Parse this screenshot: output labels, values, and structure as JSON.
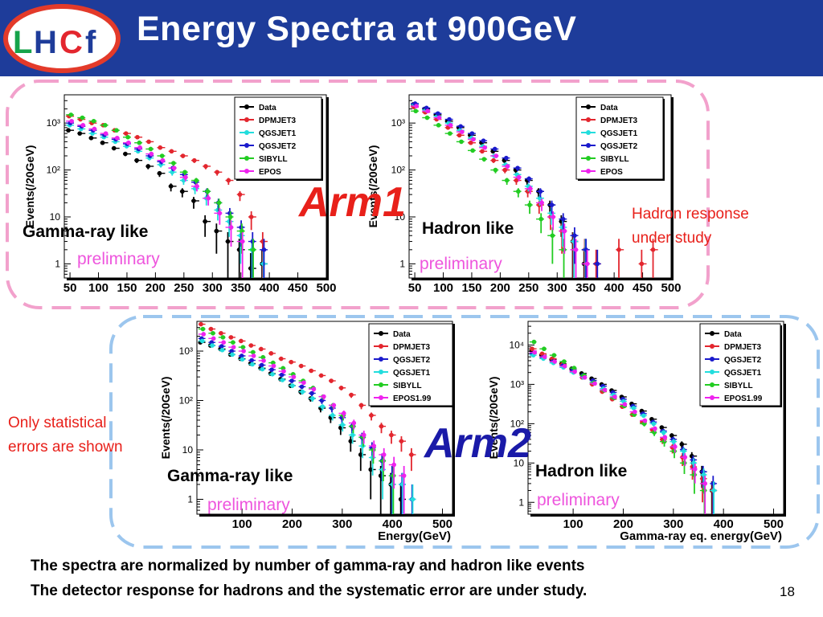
{
  "title": "Energy Spectra at 900GeV",
  "logo": {
    "letters": [
      "L",
      "H",
      "C",
      "f"
    ],
    "colors": {
      "ring": "#e33a2a",
      "L": "#16a34a",
      "H": "#1e3c9a",
      "C": "#e3262e",
      "f": "#1e3c9a"
    }
  },
  "colors": {
    "header_bg": "#1e3c9a",
    "pink_dash": "#f2a1cc",
    "blue_dash": "#9cc6ee",
    "arm1": "#e8201a",
    "arm2": "#1a1aa8",
    "preliminary": "#ee55dd",
    "red_text": "#e8201a"
  },
  "arm1_label": "Arm1",
  "arm2_label": "Arm2",
  "labels": {
    "a1_left": "Gamma-ray like",
    "a1_left_pre": "preliminary",
    "a1_right": "Hadron like",
    "a1_right_pre": "preliminary",
    "hadron_response_1": "Hadron response",
    "hadron_response_2": "under study",
    "stat_1": "Only statistical",
    "stat_2": "errors are shown",
    "a2_left": "Gamma-ray like",
    "a2_left_pre": "preliminary",
    "a2_right": "Hadron like",
    "a2_right_pre": "preliminary"
  },
  "footer": {
    "line1": "The spectra are normalized by number of gamma-ray and hadron like events",
    "line2": "The detector response for hadrons and the systematic error are under study."
  },
  "page_number": "18",
  "chart_data": [
    {
      "id": "arm1-gamma",
      "type": "scatter",
      "ylabel": "Events(/20GeV)",
      "xlabel": "",
      "log_y": true,
      "xlim": [
        40,
        500
      ],
      "ylim": [
        0.5,
        4000
      ],
      "xticks": [
        "50",
        "100",
        "150",
        "200",
        "250",
        "300",
        "350",
        "400",
        "450",
        "500"
      ],
      "yticks": [
        {
          "v": 1,
          "t": "1"
        },
        {
          "v": 10,
          "t": "10"
        },
        {
          "v": 100,
          "t": "10²"
        },
        {
          "v": 1000,
          "t": "10³"
        }
      ],
      "x": [
        50,
        70,
        90,
        110,
        130,
        150,
        170,
        190,
        210,
        230,
        250,
        270,
        290,
        310,
        330,
        350,
        370,
        390,
        410
      ],
      "series": [
        {
          "name": "Data",
          "color": "#000000",
          "values": [
            700,
            600,
            480,
            380,
            290,
            220,
            160,
            120,
            85,
            45,
            35,
            22,
            8,
            5,
            3,
            2,
            0.8,
            1,
            null
          ]
        },
        {
          "name": "DPMJET3",
          "color": "#e3262e",
          "values": [
            1400,
            1200,
            1000,
            900,
            700,
            600,
            500,
            400,
            300,
            250,
            200,
            160,
            120,
            90,
            60,
            30,
            10,
            3,
            null
          ]
        },
        {
          "name": "QGSJET1",
          "color": "#22dddd",
          "values": [
            900,
            750,
            600,
            500,
            400,
            320,
            250,
            180,
            130,
            90,
            60,
            40,
            25,
            14,
            8,
            4,
            2,
            1,
            null
          ]
        },
        {
          "name": "QGSJET2",
          "color": "#1a1acc",
          "values": [
            1000,
            850,
            700,
            560,
            450,
            360,
            280,
            200,
            150,
            110,
            80,
            55,
            35,
            20,
            12,
            6,
            3,
            2,
            null
          ]
        },
        {
          "name": "SIBYLL",
          "color": "#22cc22",
          "values": [
            1500,
            1300,
            1100,
            900,
            700,
            500,
            380,
            280,
            200,
            140,
            90,
            60,
            35,
            20,
            10,
            5,
            2,
            null,
            null
          ]
        },
        {
          "name": "EPOS",
          "color": "#ee22ee",
          "values": [
            1100,
            900,
            750,
            600,
            480,
            380,
            300,
            220,
            160,
            110,
            70,
            45,
            25,
            12,
            6,
            3,
            null,
            null,
            null
          ]
        }
      ]
    },
    {
      "id": "arm1-hadron",
      "type": "scatter",
      "ylabel": "Events(/20GeV)",
      "xlabel": "",
      "log_y": true,
      "xlim": [
        40,
        500
      ],
      "ylim": [
        0.5,
        4000
      ],
      "xticks": [
        "50",
        "100",
        "150",
        "200",
        "250",
        "300",
        "350",
        "400",
        "450",
        "500"
      ],
      "yticks": [
        {
          "v": 1,
          "t": "1"
        },
        {
          "v": 10,
          "t": "10"
        },
        {
          "v": 100,
          "t": "10²"
        },
        {
          "v": 1000,
          "t": "10³"
        }
      ],
      "x": [
        50,
        70,
        90,
        110,
        130,
        150,
        170,
        190,
        210,
        230,
        250,
        270,
        290,
        310,
        330,
        350,
        370,
        390,
        410,
        430,
        450,
        470
      ],
      "series": [
        {
          "name": "Data",
          "color": "#000000",
          "values": [
            2500,
            2000,
            1500,
            1100,
            800,
            550,
            380,
            250,
            160,
            100,
            60,
            35,
            18,
            8,
            3,
            1,
            null,
            null,
            null,
            null,
            null,
            null
          ]
        },
        {
          "name": "DPMJET3",
          "color": "#e3262e",
          "values": [
            2200,
            1700,
            1200,
            800,
            550,
            380,
            250,
            160,
            100,
            60,
            35,
            18,
            10,
            5,
            3,
            2,
            1,
            null,
            2,
            null,
            1,
            2
          ]
        },
        {
          "name": "QGSJET1",
          "color": "#22dddd",
          "values": [
            2500,
            1900,
            1400,
            1000,
            700,
            480,
            320,
            200,
            130,
            80,
            45,
            25,
            12,
            6,
            3,
            2,
            null,
            null,
            null,
            null,
            null,
            null
          ]
        },
        {
          "name": "QGSJET2",
          "color": "#1a1acc",
          "values": [
            2600,
            2100,
            1600,
            1200,
            850,
            600,
            420,
            280,
            180,
            110,
            65,
            35,
            18,
            9,
            4,
            2,
            1,
            null,
            null,
            null,
            null,
            null
          ]
        },
        {
          "name": "SIBYLL",
          "color": "#22cc22",
          "values": [
            1800,
            1300,
            900,
            600,
            400,
            260,
            170,
            100,
            60,
            35,
            18,
            9,
            4,
            2,
            null,
            null,
            null,
            null,
            null,
            null,
            null,
            null
          ]
        },
        {
          "name": "EPOS",
          "color": "#ee22ee",
          "values": [
            2300,
            1800,
            1300,
            900,
            650,
            450,
            300,
            200,
            120,
            70,
            40,
            20,
            10,
            5,
            2,
            1,
            null,
            null,
            null,
            null,
            null,
            null
          ]
        }
      ]
    },
    {
      "id": "arm2-gamma",
      "type": "scatter",
      "ylabel": "Events(/20GeV)",
      "xlabel": "Energy(GeV)",
      "log_y": true,
      "xlim": [
        10,
        520
      ],
      "ylim": [
        0.5,
        4000
      ],
      "xticks": [
        "100",
        "200",
        "300",
        "400",
        "500"
      ],
      "yticks": [
        {
          "v": 1,
          "t": "1"
        },
        {
          "v": 10,
          "t": "10"
        },
        {
          "v": 100,
          "t": "10²"
        },
        {
          "v": 1000,
          "t": "10³"
        }
      ],
      "x": [
        20,
        40,
        60,
        80,
        100,
        120,
        140,
        160,
        180,
        200,
        220,
        240,
        260,
        280,
        300,
        320,
        340,
        360,
        380,
        400,
        420,
        440,
        460
      ],
      "series": [
        {
          "name": "Data",
          "color": "#000000",
          "values": [
            1500,
            1300,
            1100,
            850,
            700,
            560,
            450,
            350,
            270,
            200,
            150,
            110,
            70,
            45,
            28,
            15,
            8,
            4,
            3,
            2,
            1,
            null,
            null
          ]
        },
        {
          "name": "DPMJET3",
          "color": "#e3262e",
          "values": [
            3500,
            2800,
            2300,
            1900,
            1600,
            1300,
            1100,
            900,
            700,
            600,
            500,
            400,
            320,
            250,
            180,
            130,
            80,
            50,
            30,
            20,
            15,
            8,
            null
          ]
        },
        {
          "name": "QGSJET2",
          "color": "#1a1acc",
          "values": [
            1800,
            1500,
            1250,
            1000,
            800,
            650,
            520,
            420,
            330,
            250,
            190,
            140,
            100,
            70,
            45,
            30,
            18,
            11,
            6,
            3,
            2,
            1,
            null
          ]
        },
        {
          "name": "QGSJET1",
          "color": "#22dddd",
          "values": [
            1600,
            1300,
            1050,
            850,
            680,
            540,
            430,
            340,
            260,
            200,
            150,
            110,
            75,
            50,
            32,
            20,
            12,
            7,
            4,
            2,
            2,
            1,
            null
          ]
        },
        {
          "name": "SIBYLL",
          "color": "#22cc22",
          "values": [
            2800,
            2300,
            1900,
            1500,
            1200,
            950,
            750,
            580,
            450,
            340,
            250,
            180,
            120,
            80,
            50,
            30,
            18,
            10,
            6,
            3,
            null,
            null,
            null
          ]
        },
        {
          "name": "EPOS1.99",
          "color": "#ee22ee",
          "values": [
            2200,
            1800,
            1500,
            1200,
            1000,
            800,
            640,
            500,
            390,
            300,
            230,
            170,
            120,
            80,
            55,
            35,
            20,
            12,
            8,
            5,
            3,
            null,
            null
          ]
        }
      ]
    },
    {
      "id": "arm2-hadron",
      "type": "scatter",
      "ylabel": "Events(/20GeV)",
      "xlabel": "Gamma-ray eq. energy(GeV)",
      "log_y": true,
      "xlim": [
        10,
        520
      ],
      "ylim": [
        0.5,
        40000
      ],
      "xticks": [
        "100",
        "200",
        "300",
        "400",
        "500"
      ],
      "yticks": [
        {
          "v": 1,
          "t": "1"
        },
        {
          "v": 10,
          "t": "10"
        },
        {
          "v": 100,
          "t": "10²"
        },
        {
          "v": 1000,
          "t": "10³"
        },
        {
          "v": 10000,
          "t": "10⁴"
        }
      ],
      "x": [
        20,
        40,
        60,
        80,
        100,
        120,
        140,
        160,
        180,
        200,
        220,
        240,
        260,
        280,
        300,
        320,
        340,
        360,
        380
      ],
      "series": [
        {
          "name": "Data",
          "color": "#000000",
          "values": [
            7000,
            5500,
            4300,
            3300,
            2500,
            1900,
            1400,
            1000,
            700,
            480,
            320,
            210,
            130,
            80,
            50,
            30,
            15,
            6,
            2
          ]
        },
        {
          "name": "DPMJET3",
          "color": "#e3262e",
          "values": [
            8000,
            6000,
            4500,
            3200,
            2200,
            1500,
            1000,
            650,
            420,
            270,
            170,
            110,
            70,
            40,
            25,
            14,
            8,
            4,
            2
          ]
        },
        {
          "name": "QGSJET2",
          "color": "#1a1acc",
          "values": [
            6000,
            4800,
            3800,
            3000,
            2300,
            1700,
            1250,
            900,
            620,
            420,
            280,
            180,
            110,
            65,
            40,
            22,
            12,
            6,
            3
          ]
        },
        {
          "name": "QGSJET1",
          "color": "#22dddd",
          "values": [
            5500,
            4500,
            3500,
            2700,
            2000,
            1500,
            1100,
            780,
            540,
            370,
            250,
            160,
            100,
            60,
            35,
            20,
            10,
            5,
            2
          ]
        },
        {
          "name": "SIBYLL",
          "color": "#22cc22",
          "values": [
            12000,
            8000,
            5500,
            3800,
            2600,
            1700,
            1100,
            700,
            450,
            280,
            170,
            100,
            60,
            35,
            20,
            10,
            5,
            2,
            null
          ]
        },
        {
          "name": "EPOS1.99",
          "color": "#ee22ee",
          "values": [
            6500,
            5000,
            3800,
            2900,
            2100,
            1500,
            1050,
            720,
            480,
            310,
            200,
            120,
            75,
            45,
            26,
            14,
            7,
            3,
            null
          ]
        }
      ]
    }
  ]
}
